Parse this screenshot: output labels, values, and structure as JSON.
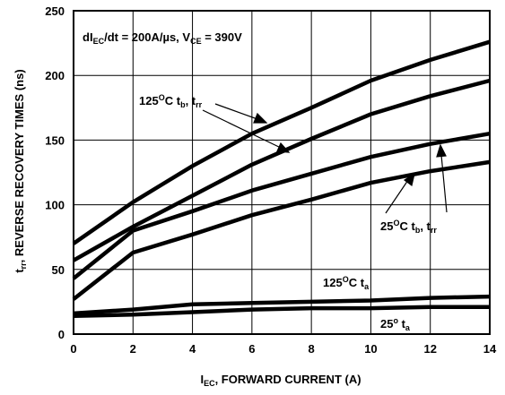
{
  "chart_data": {
    "type": "line",
    "annotation_condition": {
      "main": "dI",
      "sub1": "EC",
      "mid": "/dt = 200A/µs, V",
      "sub2": "CE",
      "tail": " = 390V"
    },
    "xlabel": {
      "main": "I",
      "sub": "EC",
      "rest": ", FORWARD CURRENT (A)"
    },
    "ylabel": {
      "main": "t",
      "sub": "rr",
      "rest": ", REVERSE RECOVERY TIMES (ns)"
    },
    "xlim": [
      0,
      14
    ],
    "ylim": [
      0,
      250
    ],
    "x_ticks": [
      "0",
      "2",
      "4",
      "6",
      "8",
      "10",
      "12",
      "14"
    ],
    "y_ticks": [
      "0",
      "50",
      "100",
      "150",
      "200",
      "250"
    ],
    "grid": true,
    "series": [
      {
        "group": "125C_trr",
        "points": [
          [
            0,
            70
          ],
          [
            2,
            102
          ],
          [
            3,
            116
          ],
          [
            4,
            130
          ],
          [
            6,
            155
          ],
          [
            8,
            175
          ],
          [
            10,
            196
          ],
          [
            12,
            212
          ],
          [
            14,
            226
          ]
        ]
      },
      {
        "group": "125C_tb",
        "points": [
          [
            0,
            57
          ],
          [
            2,
            83
          ],
          [
            4,
            107
          ],
          [
            6,
            131
          ],
          [
            8,
            151
          ],
          [
            10,
            170
          ],
          [
            12,
            184
          ],
          [
            14,
            196
          ]
        ]
      },
      {
        "group": "25C_trr",
        "points": [
          [
            0,
            43
          ],
          [
            2,
            80
          ],
          [
            4,
            95
          ],
          [
            6,
            111
          ],
          [
            8,
            124
          ],
          [
            10,
            137
          ],
          [
            12,
            147
          ],
          [
            14,
            155
          ]
        ]
      },
      {
        "group": "25C_tb",
        "points": [
          [
            0,
            27
          ],
          [
            2,
            63
          ],
          [
            4,
            77
          ],
          [
            6,
            92
          ],
          [
            8,
            104
          ],
          [
            10,
            117
          ],
          [
            12,
            126
          ],
          [
            14,
            133
          ]
        ]
      },
      {
        "group": "125C_ta",
        "points": [
          [
            0,
            16
          ],
          [
            2,
            19
          ],
          [
            4,
            23
          ],
          [
            6,
            24
          ],
          [
            8,
            25
          ],
          [
            10,
            26
          ],
          [
            12,
            28
          ],
          [
            14,
            29
          ]
        ]
      },
      {
        "group": "25C_ta",
        "points": [
          [
            0,
            14
          ],
          [
            2,
            15
          ],
          [
            4,
            17
          ],
          [
            6,
            19
          ],
          [
            8,
            20
          ],
          [
            10,
            20
          ],
          [
            12,
            21
          ],
          [
            14,
            21
          ]
        ]
      }
    ],
    "curve_labels": [
      {
        "id": "label-125-tb-trr",
        "base": "125",
        "sup": "O",
        "c": "C t",
        "sub1": "b",
        "comma": ", t",
        "sub2": "rr"
      },
      {
        "id": "label-25-tb-trr",
        "base": "25",
        "sup": "O",
        "c": "C t",
        "sub1": "b",
        "comma": ", t",
        "sub2": "rr"
      },
      {
        "id": "label-125-ta",
        "base": "125",
        "sup": "O",
        "c": "C t",
        "sub1": "a"
      },
      {
        "id": "label-25-ta",
        "base": "25",
        "sup": "o",
        "c": " t",
        "sub1": "a"
      }
    ]
  }
}
